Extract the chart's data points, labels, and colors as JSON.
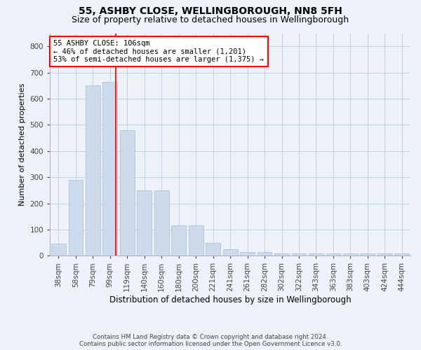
{
  "title": "55, ASHBY CLOSE, WELLINGBOROUGH, NN8 5FH",
  "subtitle": "Size of property relative to detached houses in Wellingborough",
  "xlabel": "Distribution of detached houses by size in Wellingborough",
  "ylabel": "Number of detached properties",
  "footer1": "Contains HM Land Registry data © Crown copyright and database right 2024.",
  "footer2": "Contains public sector information licensed under the Open Government Licence v3.0.",
  "categories": [
    "38sqm",
    "58sqm",
    "79sqm",
    "99sqm",
    "119sqm",
    "140sqm",
    "160sqm",
    "180sqm",
    "200sqm",
    "221sqm",
    "241sqm",
    "261sqm",
    "282sqm",
    "302sqm",
    "322sqm",
    "343sqm",
    "363sqm",
    "383sqm",
    "403sqm",
    "424sqm",
    "444sqm"
  ],
  "values": [
    45,
    290,
    650,
    665,
    480,
    250,
    250,
    115,
    115,
    50,
    25,
    15,
    15,
    8,
    8,
    8,
    8,
    8,
    10,
    8,
    8
  ],
  "bar_color": "#ccdaeb",
  "bar_edge_color": "#a8bfd4",
  "grid_color": "#c5d0e0",
  "background_color": "#edf1f8",
  "ylim_max": 850,
  "yticks": [
    0,
    100,
    200,
    300,
    400,
    500,
    600,
    700,
    800
  ],
  "property_label": "55 ASHBY CLOSE: 106sqm",
  "annotation_line1": "← 46% of detached houses are smaller (1,201)",
  "annotation_line2": "53% of semi-detached houses are larger (1,375) →",
  "red_line_x": 3.35,
  "title_fontsize": 10,
  "subtitle_fontsize": 9,
  "ylabel_fontsize": 8,
  "xlabel_fontsize": 8.5,
  "tick_fontsize": 7.5,
  "annot_fontsize": 7.5,
  "footer_fontsize": 6.2
}
